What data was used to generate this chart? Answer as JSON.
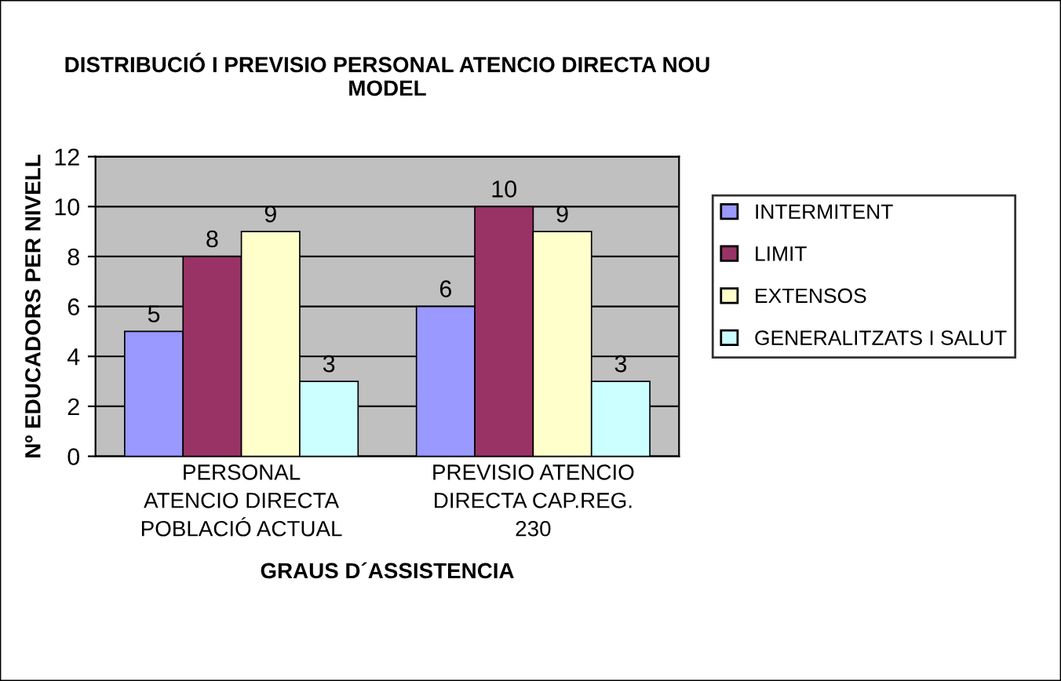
{
  "chart_data": {
    "type": "bar",
    "title": "DISTRIBUCIÓ I PREVISIO PERSONAL ATENCIO DIRECTA NOU\nMODEL",
    "xlabel": "GRAUS D´ASSISTENCIA",
    "ylabel": "Nº EDUCADORS PER NIVELL",
    "categories": [
      "PERSONAL\nATENCIO DIRECTA\nPOBLACIÓ ACTUAL",
      "PREVISIO ATENCIO\nDIRECTA CAP.REG.\n230"
    ],
    "series": [
      {
        "name": "INTERMITENT",
        "color": "#9999ff",
        "values": [
          5,
          6
        ]
      },
      {
        "name": "LIMIT",
        "color": "#993366",
        "values": [
          8,
          10
        ]
      },
      {
        "name": "EXTENSOS",
        "color": "#ffffcc",
        "values": [
          9,
          9
        ]
      },
      {
        "name": "GENERALITZATS I SALUT",
        "color": "#ccffff",
        "values": [
          3,
          3
        ]
      }
    ],
    "ylim": [
      0,
      12
    ],
    "yticks": [
      0,
      2,
      4,
      6,
      8,
      10,
      12
    ],
    "grid": "y",
    "legend": "right",
    "data_labels": true
  }
}
